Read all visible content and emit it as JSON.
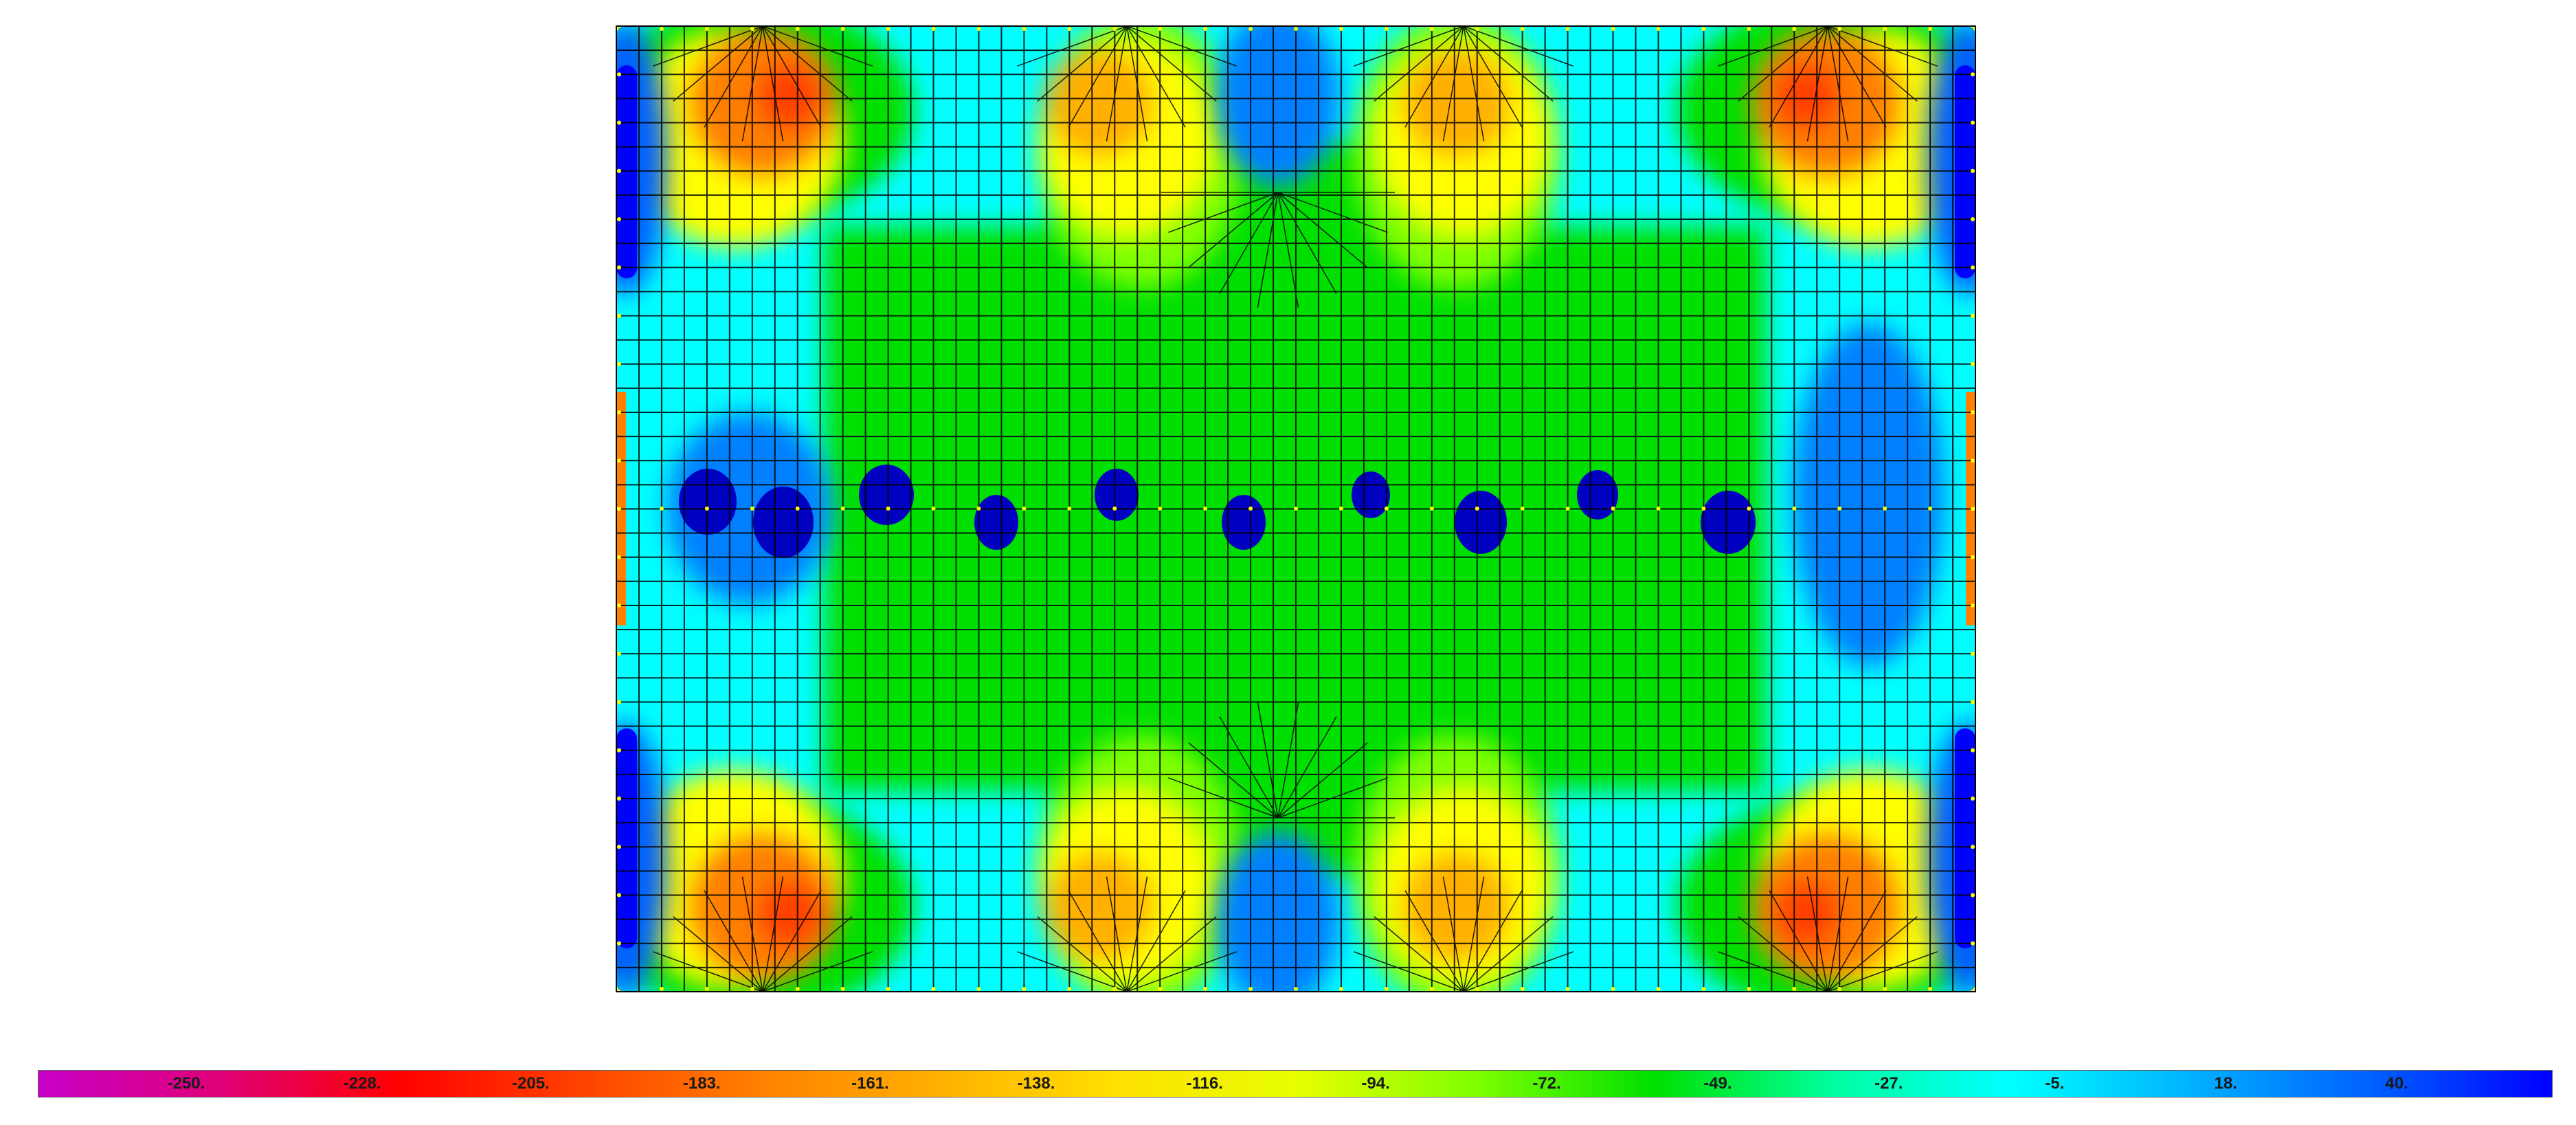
{
  "contour_plot": {
    "palette": [
      "#c800c8",
      "#ff0000",
      "#ff8000",
      "#ffff00",
      "#00e000",
      "#00ffff",
      "#0080ff",
      "#0000ff"
    ],
    "mesh_line_color": "#000000",
    "support_point_color": "#ffff00"
  },
  "legend": {
    "ticks": [
      "-250.",
      "-228.",
      "-205.",
      "-183.",
      "-161.",
      "-138.",
      "-116.",
      "-94.",
      "-72.",
      "-49.",
      "-27.",
      "-5.",
      "18.",
      "40."
    ],
    "colors": [
      "#c800c8",
      "#e0007a",
      "#ff0000",
      "#ff4000",
      "#ff8000",
      "#ffb000",
      "#ffe000",
      "#e8ff00",
      "#80ff00",
      "#00e000",
      "#00ffa0",
      "#00ffff",
      "#00b0ff",
      "#0060ff",
      "#0000ff"
    ]
  }
}
